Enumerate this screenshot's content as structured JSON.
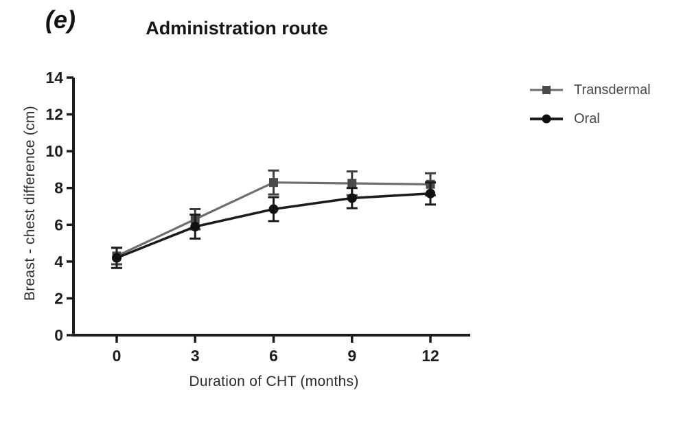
{
  "figure": {
    "panel_label": "(e)",
    "background_color": "#ffffff"
  },
  "chart_data": {
    "type": "line",
    "title": "Administration route",
    "xlabel": "Duration of CHT (months)",
    "ylabel": "Breast - chest difference (cm)",
    "x": [
      0,
      3,
      6,
      9,
      12
    ],
    "xtick_labels": [
      "0",
      "3",
      "6",
      "9",
      "12"
    ],
    "ylim": [
      0,
      14
    ],
    "yticks": [
      0,
      2,
      4,
      6,
      8,
      10,
      12,
      14
    ],
    "ytick_labels": [
      "0",
      "2",
      "4",
      "6",
      "8",
      "10",
      "12",
      "14"
    ],
    "grid": false,
    "legend_position": "right-top",
    "axis_color": "#1c1c1c",
    "series": [
      {
        "name": "Transdermal",
        "marker": "square",
        "line_color": "#6e6e6e",
        "marker_color": "#4a4a4a",
        "error_color": "#3d3d3d",
        "values": [
          4.3,
          6.3,
          8.3,
          8.25,
          8.2
        ],
        "errors": [
          0.45,
          0.55,
          0.65,
          0.65,
          0.6
        ]
      },
      {
        "name": "Oral",
        "marker": "circle",
        "line_color": "#1c1c1c",
        "marker_color": "#111111",
        "error_color": "#1c1c1c",
        "values": [
          4.2,
          5.9,
          6.85,
          7.45,
          7.7
        ],
        "errors": [
          0.55,
          0.65,
          0.65,
          0.55,
          0.6
        ]
      }
    ]
  }
}
